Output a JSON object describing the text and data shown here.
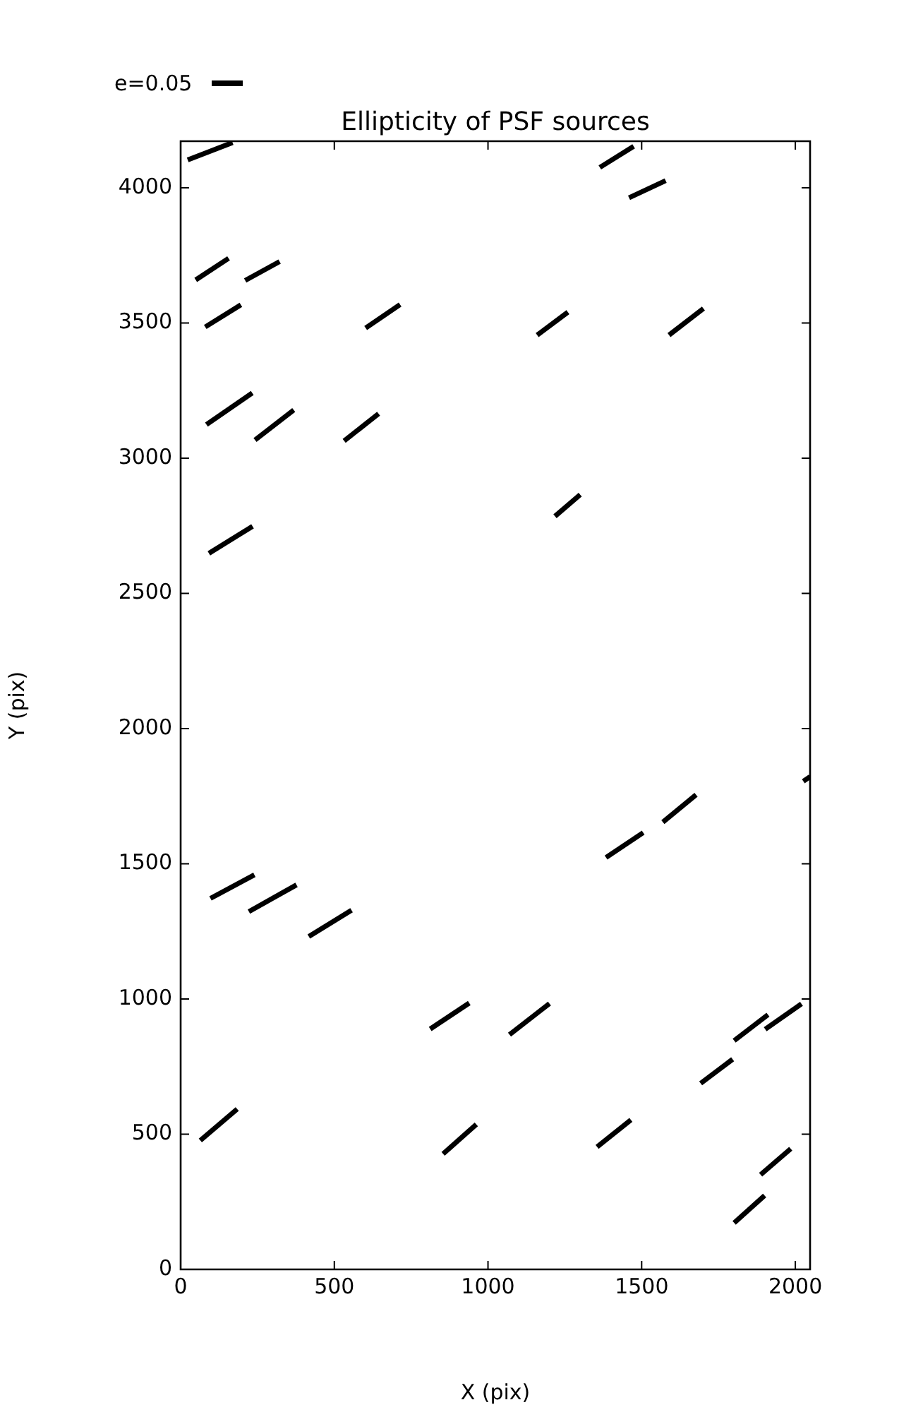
{
  "chart_data": {
    "type": "line",
    "title": "Ellipticity of PSF sources",
    "xlabel": "X (pix)",
    "ylabel": "Y (pix)",
    "annotations": [
      "e=0.05"
    ],
    "xlim": [
      0,
      2048
    ],
    "ylim": [
      0,
      4172
    ],
    "xticks": [
      0,
      500,
      1000,
      1500,
      2000
    ],
    "yticks": [
      0,
      500,
      1000,
      1500,
      2000,
      2500,
      3000,
      3500,
      4000
    ],
    "grid": false,
    "legend": false,
    "marker": "none",
    "line_style": "solid",
    "series": [
      {
        "color": "#000000",
        "x": [
          23,
          169
        ],
        "values": [
          4103,
          4167
        ]
      },
      {
        "color": "#000000",
        "x": [
          1364,
          1474
        ],
        "values": [
          4075,
          4153
        ]
      },
      {
        "color": "#000000",
        "x": [
          1459,
          1578
        ],
        "values": [
          3963,
          4026
        ]
      },
      {
        "color": "#000000",
        "x": [
          49,
          156
        ],
        "values": [
          3659,
          3739
        ]
      },
      {
        "color": "#000000",
        "x": [
          210,
          322
        ],
        "values": [
          3657,
          3727
        ]
      },
      {
        "color": "#000000",
        "x": [
          80,
          196
        ],
        "values": [
          3485,
          3567
        ]
      },
      {
        "color": "#000000",
        "x": [
          602,
          714
        ],
        "values": [
          3481,
          3568
        ]
      },
      {
        "color": "#000000",
        "x": [
          1160,
          1260
        ],
        "values": [
          3455,
          3540
        ]
      },
      {
        "color": "#000000",
        "x": [
          1589,
          1701
        ],
        "values": [
          3455,
          3553
        ]
      },
      {
        "color": "#000000",
        "x": [
          84,
          233
        ],
        "values": [
          3124,
          3241
        ]
      },
      {
        "color": "#000000",
        "x": [
          242,
          368
        ],
        "values": [
          3067,
          3178
        ]
      },
      {
        "color": "#000000",
        "x": [
          532,
          644
        ],
        "values": [
          3064,
          3164
        ]
      },
      {
        "color": "#000000",
        "x": [
          1218,
          1300
        ],
        "values": [
          2785,
          2865
        ]
      },
      {
        "color": "#000000",
        "x": [
          92,
          234
        ],
        "values": [
          2648,
          2748
        ]
      },
      {
        "color": "#000000",
        "x": [
          2026,
          2048
        ],
        "values": [
          1805,
          1822
        ]
      },
      {
        "color": "#000000",
        "x": [
          1384,
          1505
        ],
        "values": [
          1523,
          1615
        ]
      },
      {
        "color": "#000000",
        "x": [
          1569,
          1677
        ],
        "values": [
          1654,
          1755
        ]
      },
      {
        "color": "#000000",
        "x": [
          97,
          240
        ],
        "values": [
          1372,
          1459
        ]
      },
      {
        "color": "#000000",
        "x": [
          222,
          377
        ],
        "values": [
          1323,
          1422
        ]
      },
      {
        "color": "#000000",
        "x": [
          417,
          556
        ],
        "values": [
          1231,
          1328
        ]
      },
      {
        "color": "#000000",
        "x": [
          812,
          939
        ],
        "values": [
          889,
          985
        ]
      },
      {
        "color": "#000000",
        "x": [
          1070,
          1200
        ],
        "values": [
          868,
          983
        ]
      },
      {
        "color": "#000000",
        "x": [
          1801,
          1911
        ],
        "values": [
          846,
          942
        ]
      },
      {
        "color": "#000000",
        "x": [
          1902,
          2020
        ],
        "values": [
          888,
          982
        ]
      },
      {
        "color": "#000000",
        "x": [
          1692,
          1796
        ],
        "values": [
          688,
          777
        ]
      },
      {
        "color": "#000000",
        "x": [
          64,
          184
        ],
        "values": [
          477,
          593
        ]
      },
      {
        "color": "#000000",
        "x": [
          854,
          962
        ],
        "values": [
          427,
          536
        ]
      },
      {
        "color": "#000000",
        "x": [
          1355,
          1465
        ],
        "values": [
          453,
          553
        ]
      },
      {
        "color": "#000000",
        "x": [
          1887,
          1985
        ],
        "values": [
          350,
          446
        ]
      },
      {
        "color": "#000000",
        "x": [
          1801,
          1900
        ],
        "values": [
          172,
          273
        ]
      }
    ]
  }
}
